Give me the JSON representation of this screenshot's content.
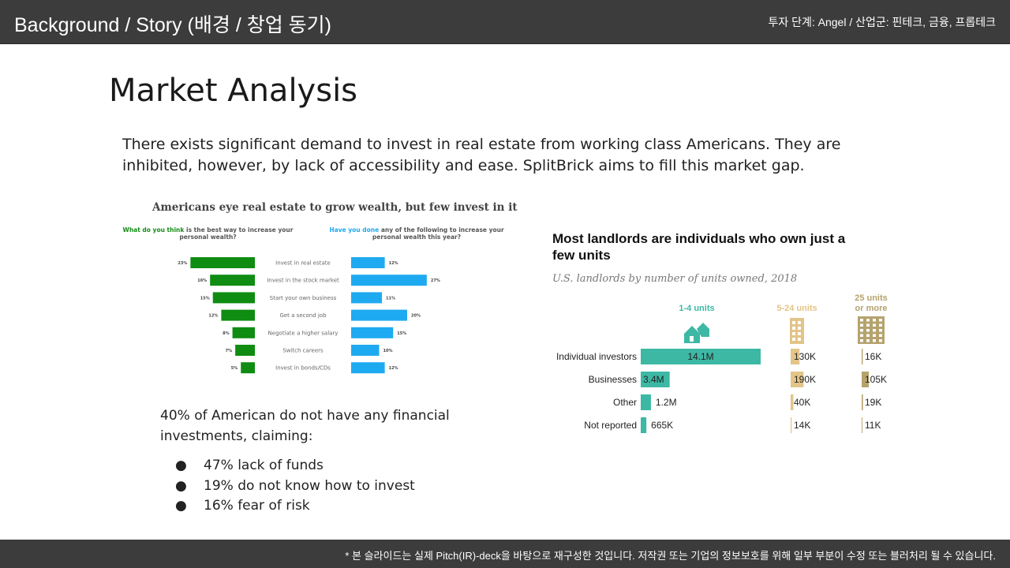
{
  "header": {
    "title": "Background / Story (배경 / 창업 동기)",
    "meta": "투자 단계: Angel / 산업군: 핀테크, 금융, 프롭테크"
  },
  "footer": {
    "note": "* 본 슬라이드는 실제 Pitch(IR)-deck을 바탕으로 재구성한 것입니다. 저작권 또는 기업의 정보보호를 위해 일부 부분이 수정 또는 블러처리 될 수 있습니다."
  },
  "slide": {
    "title": "Market Analysis",
    "intro_line1": "There exists significant demand to invest in real estate from working class Americans. They are",
    "intro_line2": "inhibited, however, by lack of accessibility and ease. SplitBrick aims to fill this market gap.",
    "stat_line1": "40% of American do not have any financial",
    "stat_line2": "investments, claiming:",
    "bullets": [
      {
        "text": "47% lack of funds"
      },
      {
        "text": "19% do not know how to invest"
      },
      {
        "text": "16% fear of risk"
      }
    ]
  },
  "chart_data": [
    {
      "type": "bar",
      "title": "Americans eye real estate to grow wealth, but few invest in it",
      "left_header_hl": "What do you think",
      "left_header_rest": "is the best way to increase your personal wealth?",
      "right_header_hl": "Have you done",
      "right_header_rest": "any of the following to increase your personal wealth this year?",
      "categories": [
        "Invest in real estate",
        "Invest in the stock market",
        "Start your own business",
        "Get a second job",
        "Negotiate a higher salary",
        "Switch careers",
        "Invest in bonds/CDs"
      ],
      "series": [
        {
          "values": [
            23,
            16,
            15,
            12,
            8,
            7,
            5
          ],
          "labels": [
            "23%",
            "16%",
            "15%",
            "12%",
            "8%",
            "7%",
            "5%"
          ],
          "color": "#0f8c12"
        },
        {
          "values": [
            12,
            27,
            11,
            20,
            15,
            10,
            12
          ],
          "labels": [
            "12%",
            "27%",
            "11%",
            "20%",
            "15%",
            "10%",
            "12%"
          ],
          "color": "#1eaaf0"
        }
      ]
    },
    {
      "type": "table",
      "title": "Most landlords are individuals who own just a few units",
      "subtitle": "U.S. landlords by number of units owned, 2018",
      "columns": [
        {
          "label": "1-4 units",
          "color": "#3db8a4",
          "icon": "houses-icon"
        },
        {
          "label": "5-24 units",
          "color": "#e3c489",
          "icon": "building-icon"
        },
        {
          "label_line1": "25 units",
          "label_line2": "or more",
          "color": "#b5a36e",
          "icon": "tall-building-icon"
        }
      ],
      "rows": [
        {
          "label": "Individual investors",
          "values": [
            14.1,
            0.13,
            0.016
          ],
          "labels": [
            "14.1M",
            "130K",
            "16K"
          ]
        },
        {
          "label": "Businesses",
          "values": [
            3.4,
            0.19,
            0.105
          ],
          "labels": [
            "3.4M",
            "190K",
            "105K"
          ]
        },
        {
          "label": "Other",
          "values": [
            1.2,
            0.04,
            0.019
          ],
          "labels": [
            "1.2M",
            "40K",
            "19K"
          ]
        },
        {
          "label": "Not reported",
          "values": [
            0.665,
            0.014,
            0.011
          ],
          "labels": [
            "665K",
            "14K",
            "11K"
          ]
        }
      ],
      "units": "millions of landlords"
    }
  ]
}
